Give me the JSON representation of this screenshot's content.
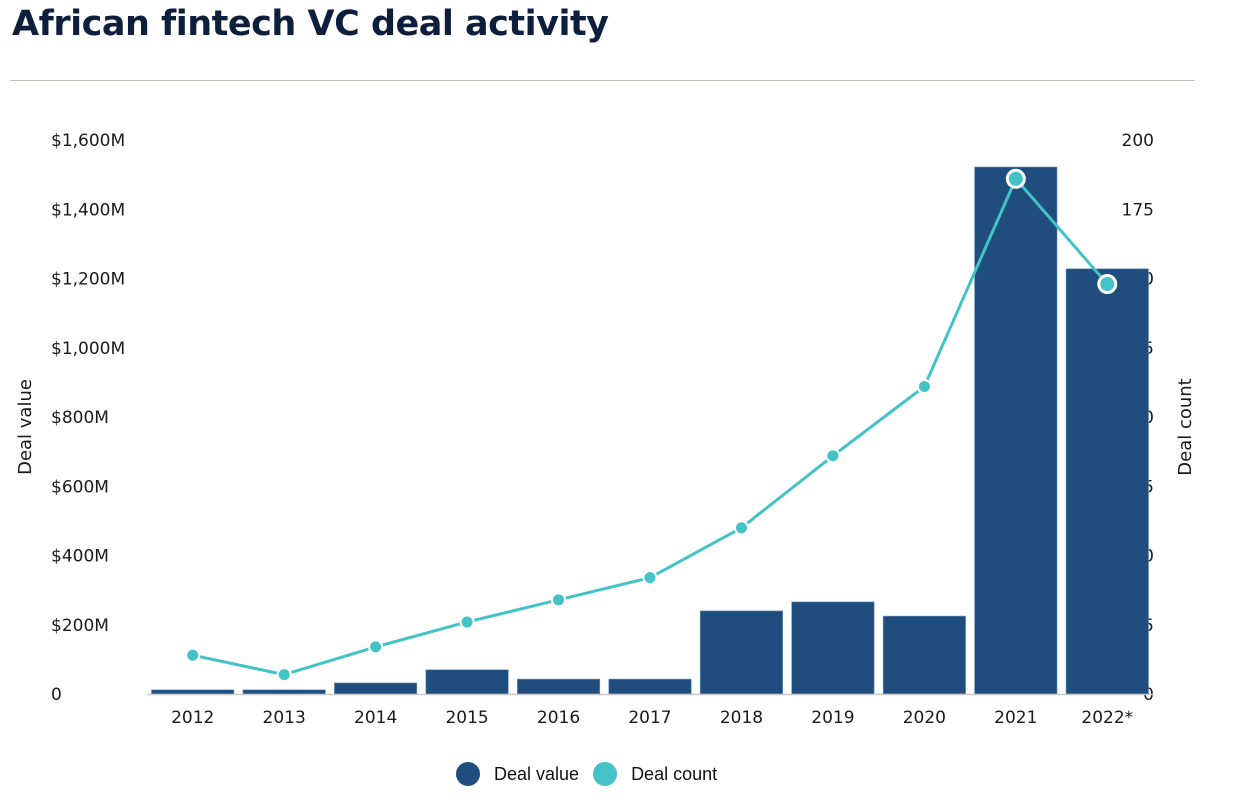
{
  "title": "African fintech VC deal activity",
  "colors": {
    "bar": "#1f4e7e",
    "line": "#43c2c8",
    "axis": "#c8c8c8",
    "title": "#0d1f3c"
  },
  "legend": [
    {
      "label": "Deal value",
      "color": "#1f4e7e"
    },
    {
      "label": "Deal count",
      "color": "#43c2c8"
    }
  ],
  "chart_data": {
    "type": "bar+line",
    "title": "African fintech VC deal activity",
    "categories": [
      "2012",
      "2013",
      "2014",
      "2015",
      "2016",
      "2017",
      "2018",
      "2019",
      "2020",
      "2021",
      "2022*"
    ],
    "series": [
      {
        "name": "Deal value",
        "type": "bar",
        "axis": "left",
        "unit": "$M",
        "values": [
          12,
          12,
          32,
          70,
          43,
          43,
          240,
          266,
          225,
          1522,
          1228
        ]
      },
      {
        "name": "Deal count",
        "type": "line",
        "axis": "right",
        "values": [
          14,
          7,
          17,
          26,
          34,
          42,
          60,
          86,
          111,
          186,
          148
        ],
        "highlighted_points": [
          "2021",
          "2022*"
        ]
      }
    ],
    "y_left": {
      "label": "Deal value",
      "range": [
        0,
        1600
      ],
      "ticks": [
        {
          "value": 0,
          "label": "0"
        },
        {
          "value": 200,
          "label": "$200M"
        },
        {
          "value": 400,
          "label": "$400M"
        },
        {
          "value": 600,
          "label": "$600M"
        },
        {
          "value": 800,
          "label": "$800M"
        },
        {
          "value": 1000,
          "label": "$1,000M"
        },
        {
          "value": 1200,
          "label": "$1,200M"
        },
        {
          "value": 1400,
          "label": "$1,400M"
        },
        {
          "value": 1600,
          "label": "$1,600M"
        }
      ]
    },
    "y_right": {
      "label": "Deal count",
      "range": [
        0,
        200
      ],
      "ticks": [
        {
          "value": 0,
          "label": "0"
        },
        {
          "value": 25,
          "label": "25"
        },
        {
          "value": 50,
          "label": "50"
        },
        {
          "value": 75,
          "label": "75"
        },
        {
          "value": 100,
          "label": "100"
        },
        {
          "value": 125,
          "label": "125"
        },
        {
          "value": 150,
          "label": "150"
        },
        {
          "value": 175,
          "label": "175"
        },
        {
          "value": 200,
          "label": "200"
        }
      ]
    },
    "xlabel": "",
    "grid": false,
    "legend_position": "bottom-center"
  }
}
